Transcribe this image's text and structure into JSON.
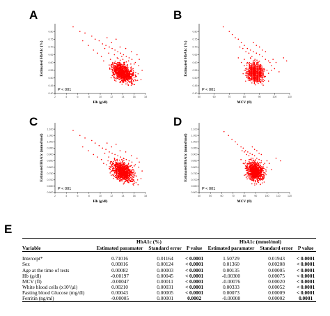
{
  "panels": [
    {
      "letter": "A",
      "ylabel": "Estimated HbA1c (%)",
      "xlabel": "Hb (g/dl)",
      "pvalue": "P < 001"
    },
    {
      "letter": "B",
      "ylabel": "Estimated HbA1c (%)",
      "xlabel": "MCV (fl)",
      "pvalue": "P < 001"
    },
    {
      "letter": "C",
      "ylabel": "Estimated HbA1c (mmol/mol)",
      "xlabel": "Hb (g/dl)",
      "pvalue": "P < 001"
    },
    {
      "letter": "D",
      "ylabel": "Estimated HbA1c (mmol/mol)",
      "xlabel": "MCV (fl)",
      "pvalue": "P < 001"
    }
  ],
  "point_color": "#ff0000",
  "chart_data": [
    {
      "type": "scatter",
      "panel": "A",
      "xlabel": "Hb (g/dl)",
      "ylabel": "Estimated HbA1c (%)",
      "xlim": [
        2,
        18
      ],
      "ylim": [
        0.4,
        0.85
      ],
      "xticks": [
        "2",
        "4",
        "6",
        "8",
        "10",
        "12",
        "14",
        "16",
        "18"
      ],
      "yticks": [
        "0.40",
        "0.45",
        "0.50",
        "0.55",
        "0.60",
        "0.65",
        "0.70",
        "0.75",
        "0.80"
      ],
      "points": [
        [
          5.2,
          0.83
        ],
        [
          6.4,
          0.8
        ],
        [
          7.3,
          0.79
        ],
        [
          8.5,
          0.77
        ],
        [
          9.1,
          0.75
        ],
        [
          9.8,
          0.74
        ],
        [
          10.4,
          0.72
        ],
        [
          11,
          0.71
        ],
        [
          11.6,
          0.7
        ],
        [
          12.1,
          0.69
        ],
        [
          12.6,
          0.68
        ],
        [
          13.1,
          0.67
        ],
        [
          13.6,
          0.66
        ],
        [
          14.1,
          0.65
        ],
        [
          14.6,
          0.64
        ],
        [
          15.1,
          0.63
        ],
        [
          15.6,
          0.62
        ],
        [
          16.2,
          0.6
        ],
        [
          16.8,
          0.58
        ],
        [
          17.4,
          0.55
        ],
        [
          10.2,
          0.64
        ],
        [
          11.8,
          0.62
        ],
        [
          13.3,
          0.6
        ],
        [
          14.8,
          0.58
        ],
        [
          15.8,
          0.56
        ],
        [
          12.4,
          0.57
        ],
        [
          13.9,
          0.55
        ],
        [
          15.2,
          0.53
        ],
        [
          16.4,
          0.51
        ],
        [
          8.8,
          0.68
        ],
        [
          7.9,
          0.71
        ],
        [
          6.9,
          0.74
        ],
        [
          9.5,
          0.66
        ],
        [
          12,
          0.73
        ],
        [
          13.5,
          0.7
        ],
        [
          14.5,
          0.69
        ],
        [
          15.5,
          0.67
        ],
        [
          16.5,
          0.65
        ],
        [
          11.2,
          0.76
        ],
        [
          12.8,
          0.75
        ],
        [
          14.2,
          0.6
        ],
        [
          13,
          0.63
        ],
        [
          14,
          0.62
        ],
        [
          15,
          0.61
        ],
        [
          16,
          0.59
        ],
        [
          12.5,
          0.65
        ],
        [
          13.8,
          0.64
        ],
        [
          15.4,
          0.59
        ],
        [
          14.4,
          0.56
        ],
        [
          13.2,
          0.58
        ],
        [
          11.5,
          0.66
        ],
        [
          10.8,
          0.69
        ],
        [
          16.9,
          0.62
        ],
        [
          17.2,
          0.49
        ],
        [
          15.9,
          0.48
        ],
        [
          14.7,
          0.52
        ],
        [
          13.4,
          0.54
        ],
        [
          12.2,
          0.6
        ],
        [
          11.9,
          0.58
        ],
        [
          10.6,
          0.61
        ]
      ]
    },
    {
      "type": "scatter",
      "panel": "B",
      "xlabel": "MCV (fl)",
      "ylabel": "Estimated HbA1c (%)",
      "xlim": [
        50,
        110
      ],
      "ylim": [
        0.4,
        0.85
      ],
      "xticks": [
        "50",
        "60",
        "70",
        "80",
        "90",
        "100",
        "110"
      ],
      "yticks": [
        "0.40",
        "0.45",
        "0.50",
        "0.55",
        "0.60",
        "0.65",
        "0.70",
        "0.75",
        "0.80"
      ],
      "points": [
        [
          66,
          0.83
        ],
        [
          70,
          0.8
        ],
        [
          72,
          0.78
        ],
        [
          74,
          0.76
        ],
        [
          76,
          0.75
        ],
        [
          78,
          0.73
        ],
        [
          80,
          0.71
        ],
        [
          82,
          0.69
        ],
        [
          84,
          0.68
        ],
        [
          86,
          0.67
        ],
        [
          88,
          0.66
        ],
        [
          90,
          0.65
        ],
        [
          92,
          0.64
        ],
        [
          94,
          0.62
        ],
        [
          96,
          0.61
        ],
        [
          98,
          0.58
        ],
        [
          100,
          0.56
        ],
        [
          103,
          0.54
        ],
        [
          106,
          0.63
        ],
        [
          108,
          0.61
        ],
        [
          80,
          0.62
        ],
        [
          82,
          0.6
        ],
        [
          84,
          0.58
        ],
        [
          86,
          0.56
        ],
        [
          88,
          0.54
        ],
        [
          90,
          0.52
        ],
        [
          92,
          0.5
        ],
        [
          94,
          0.51
        ],
        [
          96,
          0.53
        ],
        [
          85,
          0.64
        ],
        [
          87,
          0.62
        ],
        [
          89,
          0.6
        ],
        [
          91,
          0.58
        ],
        [
          93,
          0.56
        ],
        [
          95,
          0.55
        ],
        [
          83,
          0.66
        ],
        [
          81,
          0.67
        ],
        [
          79,
          0.69
        ],
        [
          77,
          0.7
        ],
        [
          97,
          0.6
        ],
        [
          99,
          0.62
        ],
        [
          101,
          0.6
        ],
        [
          86,
          0.73
        ],
        [
          88,
          0.71
        ],
        [
          90,
          0.7
        ],
        [
          92,
          0.68
        ],
        [
          94,
          0.67
        ],
        [
          84,
          0.63
        ],
        [
          86,
          0.61
        ],
        [
          88,
          0.59
        ],
        [
          90,
          0.57
        ],
        [
          92,
          0.55
        ],
        [
          80,
          0.58
        ],
        [
          78,
          0.6
        ],
        [
          76,
          0.63
        ],
        [
          98,
          0.55
        ],
        [
          96,
          0.48
        ],
        [
          89,
          0.49
        ],
        [
          87,
          0.5
        ],
        [
          85,
          0.52
        ]
      ]
    },
    {
      "type": "scatter",
      "panel": "C",
      "xlabel": "Hb (g/dl)",
      "ylabel": "Estimated HbA1c (mmol/mol)",
      "xlim": [
        2,
        18
      ],
      "ylim": [
        0.6,
        1.15
      ],
      "xticks": [
        "2",
        "4",
        "6",
        "8",
        "10",
        "12",
        "14",
        "16",
        "18"
      ],
      "yticks": [
        "0.600",
        "0.650",
        "0.700",
        "0.750",
        "0.800",
        "0.850",
        "0.900",
        "0.950",
        "1.000",
        "1.050",
        "1.100"
      ],
      "points": [
        [
          5.2,
          1.09
        ],
        [
          6.4,
          1.05
        ],
        [
          7.3,
          1.03
        ],
        [
          8.5,
          1.01
        ],
        [
          9.1,
          0.99
        ],
        [
          9.8,
          0.97
        ],
        [
          10.4,
          0.95
        ],
        [
          11,
          0.94
        ],
        [
          11.6,
          0.92
        ],
        [
          12.1,
          0.91
        ],
        [
          12.6,
          0.9
        ],
        [
          13.1,
          0.89
        ],
        [
          13.6,
          0.88
        ],
        [
          14.1,
          0.87
        ],
        [
          14.6,
          0.86
        ],
        [
          15.1,
          0.85
        ],
        [
          15.6,
          0.84
        ],
        [
          16.2,
          0.82
        ],
        [
          16.8,
          0.8
        ],
        [
          17.4,
          0.77
        ],
        [
          10.2,
          0.86
        ],
        [
          11.8,
          0.84
        ],
        [
          13.3,
          0.82
        ],
        [
          14.8,
          0.8
        ],
        [
          15.8,
          0.78
        ],
        [
          12.4,
          0.79
        ],
        [
          13.9,
          0.77
        ],
        [
          15.2,
          0.75
        ],
        [
          16.4,
          0.73
        ],
        [
          8.8,
          0.9
        ],
        [
          7.9,
          0.93
        ],
        [
          6.9,
          0.96
        ],
        [
          9.5,
          0.88
        ],
        [
          12,
          0.96
        ],
        [
          13.5,
          0.93
        ],
        [
          14.5,
          0.92
        ],
        [
          15.5,
          0.89
        ],
        [
          16.5,
          0.87
        ],
        [
          11.2,
          0.99
        ],
        [
          12.8,
          0.98
        ],
        [
          14.2,
          0.82
        ],
        [
          13,
          0.85
        ],
        [
          14,
          0.84
        ],
        [
          15,
          0.83
        ],
        [
          16,
          0.81
        ],
        [
          12.5,
          0.87
        ],
        [
          13.8,
          0.86
        ],
        [
          15.4,
          0.81
        ],
        [
          14.4,
          0.78
        ],
        [
          13.2,
          0.8
        ],
        [
          11.5,
          0.88
        ],
        [
          10.8,
          0.91
        ],
        [
          16.9,
          0.84
        ],
        [
          17.2,
          0.71
        ],
        [
          15.9,
          0.7
        ],
        [
          14.7,
          0.74
        ],
        [
          13.4,
          0.76
        ],
        [
          12.2,
          0.82
        ],
        [
          11.9,
          0.8
        ],
        [
          10.6,
          0.83
        ]
      ]
    },
    {
      "type": "scatter",
      "panel": "D",
      "xlabel": "MCV (fl)",
      "ylabel": "Estimated HbA1c (mmol/mol)",
      "xlim": [
        40,
        120
      ],
      "ylim": [
        0.6,
        1.15
      ],
      "xticks": [
        "40",
        "50",
        "60",
        "70",
        "80",
        "90",
        "100",
        "110",
        "120"
      ],
      "yticks": [
        "0.600",
        "0.650",
        "0.700",
        "0.750",
        "0.800",
        "0.850",
        "0.900",
        "0.950",
        "1.000",
        "1.050",
        "1.100"
      ],
      "points": [
        [
          62,
          1.08
        ],
        [
          66,
          1.05
        ],
        [
          69,
          1.02
        ],
        [
          72,
          1
        ],
        [
          74,
          0.98
        ],
        [
          77,
          0.96
        ],
        [
          79,
          0.95
        ],
        [
          81,
          0.93
        ],
        [
          83,
          0.92
        ],
        [
          85,
          0.91
        ],
        [
          87,
          0.9
        ],
        [
          89,
          0.89
        ],
        [
          91,
          0.87
        ],
        [
          93,
          0.86
        ],
        [
          95,
          0.85
        ],
        [
          97,
          0.82
        ],
        [
          100,
          0.8
        ],
        [
          104,
          0.78
        ],
        [
          108,
          0.87
        ],
        [
          112,
          0.85
        ],
        [
          81,
          0.85
        ],
        [
          83,
          0.83
        ],
        [
          85,
          0.81
        ],
        [
          87,
          0.79
        ],
        [
          89,
          0.77
        ],
        [
          91,
          0.75
        ],
        [
          93,
          0.73
        ],
        [
          95,
          0.74
        ],
        [
          97,
          0.76
        ],
        [
          86,
          0.87
        ],
        [
          88,
          0.85
        ],
        [
          90,
          0.83
        ],
        [
          92,
          0.81
        ],
        [
          94,
          0.79
        ],
        [
          96,
          0.78
        ],
        [
          84,
          0.89
        ],
        [
          82,
          0.9
        ],
        [
          80,
          0.92
        ],
        [
          78,
          0.93
        ],
        [
          98,
          0.83
        ],
        [
          100,
          0.85
        ],
        [
          102,
          0.83
        ],
        [
          87,
          0.96
        ],
        [
          89,
          0.94
        ],
        [
          91,
          0.93
        ],
        [
          93,
          0.91
        ],
        [
          95,
          0.9
        ],
        [
          85,
          0.86
        ],
        [
          87,
          0.84
        ],
        [
          89,
          0.82
        ],
        [
          91,
          0.8
        ],
        [
          93,
          0.78
        ],
        [
          81,
          0.81
        ],
        [
          79,
          0.83
        ],
        [
          77,
          0.86
        ],
        [
          99,
          0.78
        ],
        [
          97,
          0.71
        ],
        [
          90,
          0.72
        ],
        [
          88,
          0.73
        ],
        [
          86,
          0.75
        ]
      ]
    }
  ],
  "table": {
    "panel_letter": "E",
    "group1": "HbA1c (%)",
    "group2": "HbA1c (mmol/mol)",
    "columns": [
      "Variable",
      "Estimated paramater",
      "Standard error",
      "P value",
      "Estimated paramater",
      "Standard error",
      "P value"
    ],
    "rows": [
      [
        "Intercept*",
        "0.71016",
        "0.01164",
        "< 0.0001",
        "1.50729",
        "0.01943",
        "< 0.0001"
      ],
      [
        "Sex",
        "0.00816",
        "0.00124",
        "< 0.0001",
        "0.01360",
        "0.00208",
        "< 0.0001"
      ],
      [
        "Age at the time of tests",
        "0.00082",
        "0.00003",
        "< 0.0001",
        "0.00135",
        "0.00005",
        "< 0.0001"
      ],
      [
        "Hb (g/dl)",
        "-0.00197",
        "0.00045",
        "< 0.0001",
        "-0.00300",
        "0.00075",
        "< 0.0001"
      ],
      [
        "MCV (fl)",
        "-0.00047",
        "0.00011",
        "< 0.0001",
        "-0.00076",
        "0.00020",
        "< 0.0001"
      ],
      [
        "White blood cells (x10³/μl)",
        "0.00210",
        "0.00031",
        "< 0.0001",
        "0.00333",
        "0.00052",
        "< 0.0001"
      ],
      [
        "Fasting blood Glucose (mg/dl)",
        "0.00043",
        "0.00005",
        "< 0.0001",
        "0.00073",
        "0.00009",
        "< 0.0001"
      ],
      [
        "Ferritin (ng/ml)",
        "-0.00005",
        "0.00001",
        "0.0002",
        "-0.00008",
        "0.00002",
        "0.0001"
      ]
    ]
  }
}
